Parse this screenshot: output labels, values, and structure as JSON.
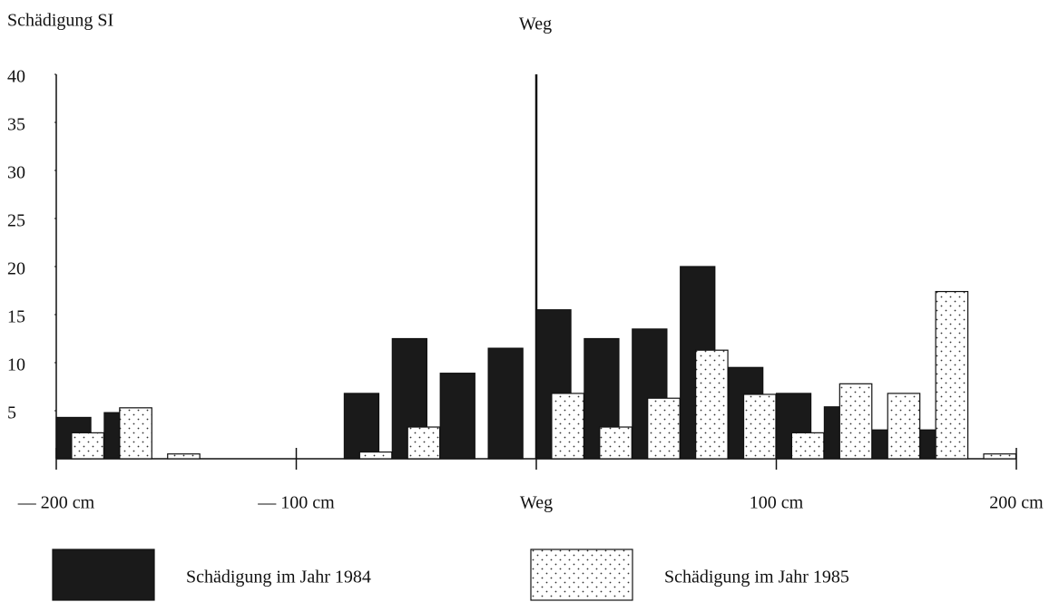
{
  "chart_data": {
    "type": "bar",
    "y_label": "Schädigung SI",
    "annotation": "Weg",
    "x": [
      -200,
      -180,
      -160,
      -140,
      -120,
      -100,
      -80,
      -60,
      -40,
      -20,
      0,
      20,
      40,
      60,
      80,
      100,
      120,
      140,
      160,
      180
    ],
    "series": [
      {
        "name": "Schädigung im Jahr 1984",
        "color": "#1a1a1a",
        "values": [
          4.3,
          4.8,
          0,
          0,
          0,
          0,
          6.8,
          12.5,
          8.9,
          11.5,
          15.5,
          12.5,
          13.5,
          20,
          9.5,
          6.8,
          5.4,
          3,
          3,
          0
        ]
      },
      {
        "name": "Schädigung im Jahr 1985",
        "color": "#ffffff",
        "pattern": "dots",
        "values": [
          2.7,
          5.3,
          0.5,
          0,
          0,
          0,
          0.7,
          3.3,
          0,
          0,
          6.8,
          3.3,
          6.3,
          11.3,
          6.7,
          2.7,
          7.8,
          6.8,
          17.4,
          0.5
        ]
      }
    ],
    "xlim": [
      -200,
      200
    ],
    "xticks": [
      {
        "value": -200,
        "label": "— 200 cm"
      },
      {
        "value": -100,
        "label": "— 100 cm"
      },
      {
        "value": 0,
        "label": "Weg"
      },
      {
        "value": 100,
        "label": "100 cm"
      },
      {
        "value": 200,
        "label": "200 cm"
      }
    ],
    "ylim": [
      0,
      40
    ],
    "yticks": [
      5,
      10,
      15,
      20,
      25,
      30,
      35,
      40
    ],
    "grid": false,
    "legend": "bottom"
  }
}
